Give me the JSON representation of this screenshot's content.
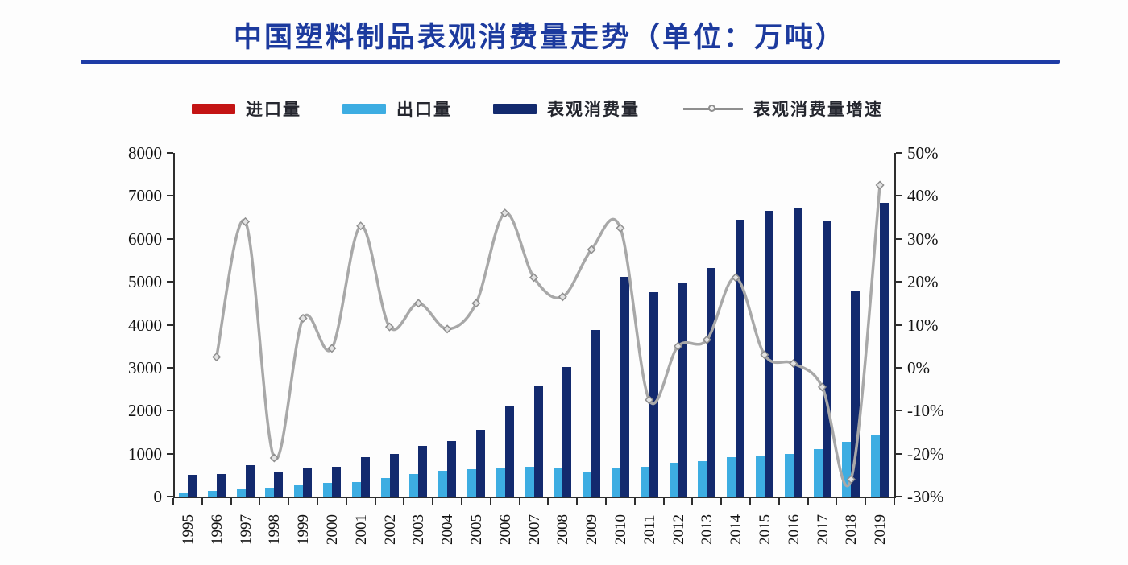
{
  "header": {
    "title": "中国塑料制品表观消费量走势（单位：万吨）",
    "title_color": "#1c3a9e",
    "underline_color": "#1e3ca6"
  },
  "legend": {
    "position": "top",
    "items": [
      {
        "label": "进口量",
        "marker": "bar",
        "color": "#c41414"
      },
      {
        "label": "出口量",
        "marker": "bar",
        "color": "#3dade2"
      },
      {
        "label": "表观消费量",
        "marker": "bar",
        "color": "#132a6e"
      },
      {
        "label": "表观消费量增速",
        "marker": "line",
        "color": "#a8a8a8"
      }
    ]
  },
  "chart_data": {
    "type": "bar",
    "subtype": "combo-bar-line-dual-axis",
    "title": "中国塑料制品表观消费量走势（单位：万吨）",
    "unit": "万吨",
    "grid": false,
    "legend_position": "top",
    "categories": [
      "1995",
      "1996",
      "1997",
      "1998",
      "1999",
      "2000",
      "2001",
      "2002",
      "2003",
      "2004",
      "2005",
      "2006",
      "2007",
      "2008",
      "2009",
      "2010",
      "2011",
      "2012",
      "2013",
      "2014",
      "2015",
      "2016",
      "2017",
      "2018",
      "2019"
    ],
    "bar_series": [
      {
        "name": "进口量",
        "color": "#c41414",
        "axis": "left",
        "values": null,
        "visible_in_plot": false
      },
      {
        "name": "出口量",
        "color": "#3dade2",
        "axis": "left",
        "values": [
          90,
          130,
          185,
          215,
          270,
          310,
          330,
          425,
          520,
          600,
          630,
          660,
          700,
          655,
          575,
          655,
          700,
          780,
          820,
          910,
          930,
          1000,
          1100,
          1280,
          1420
        ]
      },
      {
        "name": "表观消费量",
        "color": "#132a6e",
        "axis": "left",
        "values": [
          515,
          530,
          730,
          585,
          655,
          685,
          910,
          1000,
          1180,
          1300,
          1560,
          2110,
          2580,
          3010,
          3870,
          5120,
          4750,
          4990,
          5320,
          6450,
          6650,
          6700,
          6430,
          4790,
          6830
        ]
      }
    ],
    "line_series": [
      {
        "name": "表观消费量增速",
        "color": "#a8a8a8",
        "axis": "right",
        "marker": "diamond",
        "start_category": "1996",
        "values": [
          2.5,
          34,
          -21,
          11.5,
          4.5,
          33,
          9.5,
          15,
          9,
          15,
          36,
          21,
          16.5,
          27.5,
          32.5,
          -7.5,
          5,
          6.5,
          21,
          3,
          1,
          -4.5,
          -26,
          42.5
        ]
      }
    ],
    "left_axis": {
      "range": [
        0,
        8000
      ],
      "tick_labels": [
        "0",
        "1000",
        "2000",
        "3000",
        "4000",
        "5000",
        "6000",
        "7000",
        "8000"
      ]
    },
    "right_axis": {
      "range": [
        -30,
        50
      ],
      "tick_labels": [
        "-30%",
        "-20%",
        "-10%",
        "0%",
        "10%",
        "20%",
        "30%",
        "40%",
        "50%"
      ]
    }
  }
}
